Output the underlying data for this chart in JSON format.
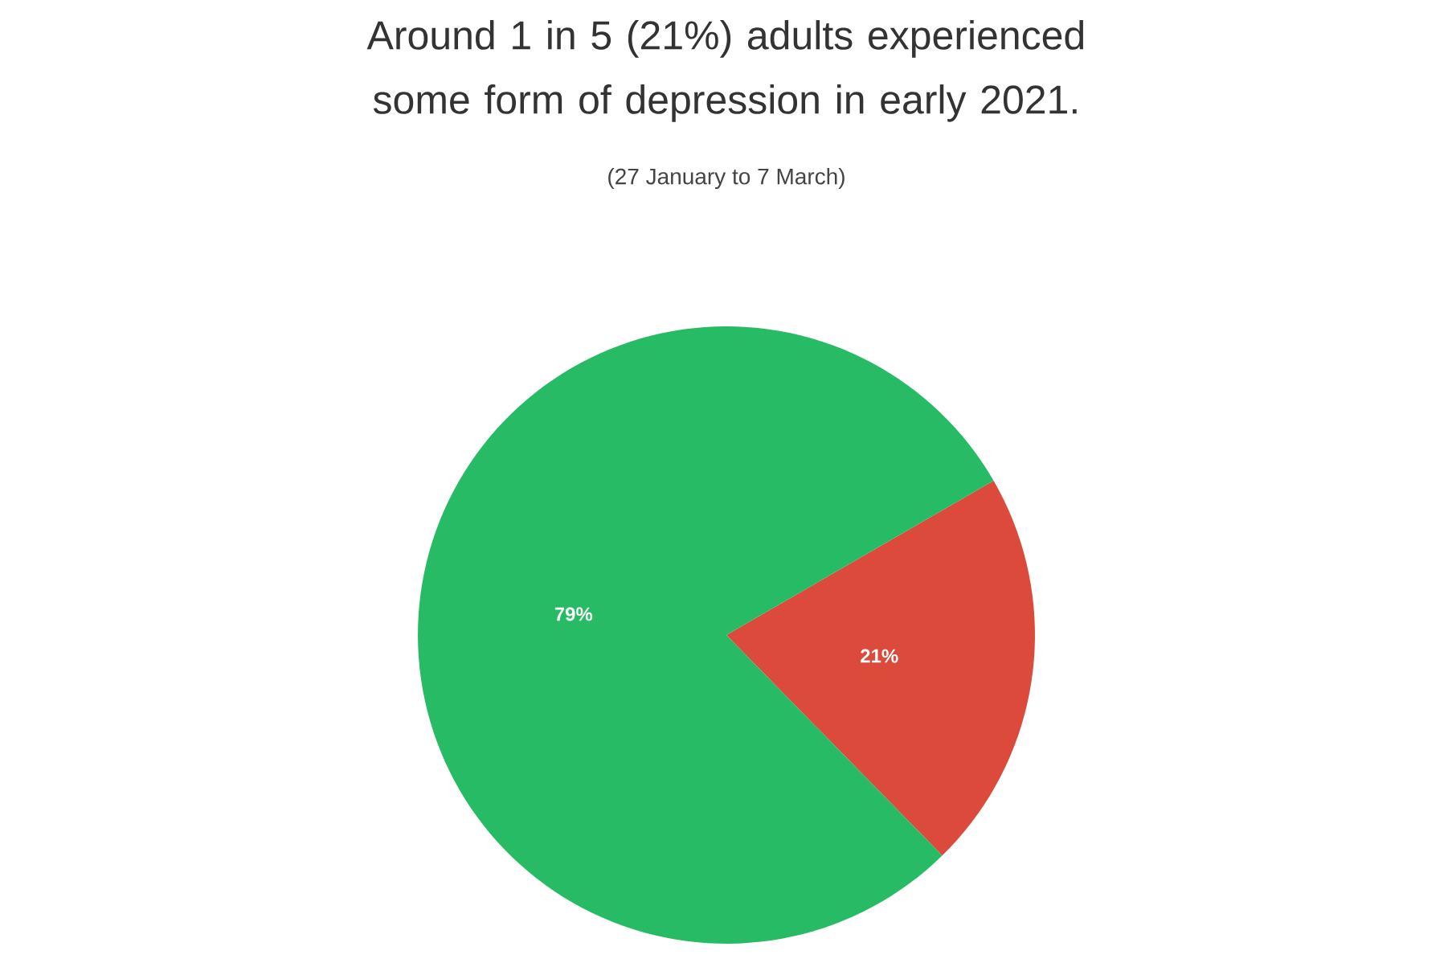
{
  "chart_data": {
    "type": "pie",
    "title": "Around 1 in 5 (21%) adults experienced some form of depression in early 2021.",
    "subtitle": "(27 January to 7 March)",
    "categories": [
      null,
      null
    ],
    "values": [
      21,
      79
    ],
    "value_labels": [
      "21%",
      "79%"
    ],
    "colors": [
      "#db4a3a",
      "#27bb66"
    ]
  }
}
